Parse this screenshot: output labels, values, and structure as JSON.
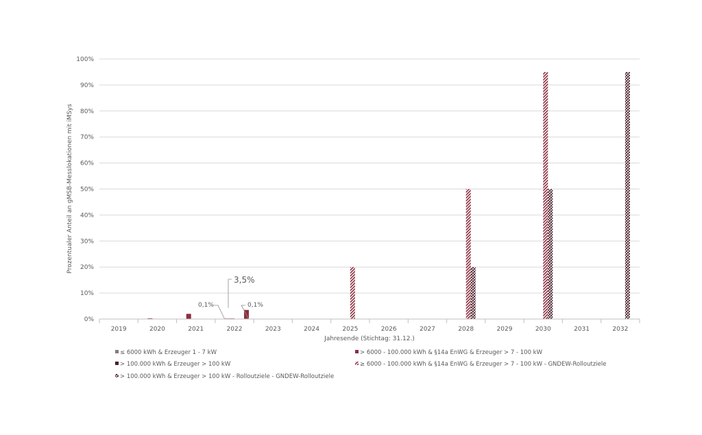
{
  "chart_data": {
    "type": "bar",
    "title": "",
    "xlabel": "Jahresende (Stichtag: 31.12.)",
    "ylabel": "Prozentualer Anteil an gMSB-Messlokationen mit iMSys",
    "ylim": [
      0,
      100
    ],
    "y_ticks": [
      "0%",
      "10%",
      "20%",
      "30%",
      "40%",
      "50%",
      "60%",
      "70%",
      "80%",
      "90%",
      "100%"
    ],
    "grid": true,
    "legend_position": "bottom",
    "categories": [
      "2019",
      "2020",
      "2021",
      "2022",
      "2023",
      "2024",
      "2025",
      "2026",
      "2027",
      "2028",
      "2029",
      "2030",
      "2031",
      "2032"
    ],
    "series": [
      {
        "name": "≤ 6000 kWh & Erzeuger 1 - 7 kW",
        "color": "#7f7f7f",
        "pattern": "solid",
        "values": [
          0,
          0,
          0,
          0,
          0,
          0,
          0,
          0,
          0,
          0,
          0,
          0,
          0,
          0
        ]
      },
      {
        "name": "> 6000 - 100.000 kWh & §14a EnWG & Erzeuger > 7 - 100 kW",
        "color": "#8c2e3e",
        "pattern": "solid",
        "values": [
          0,
          0.3,
          2,
          0.1,
          0,
          0,
          0,
          0,
          0,
          0,
          0,
          0,
          0,
          0
        ]
      },
      {
        "name": "> 100.000 kWh & Erzeuger > 100 kW",
        "color": "#4a1f2a",
        "pattern": "solid",
        "values": [
          0,
          0,
          0,
          0.1,
          0,
          0,
          0,
          0,
          0,
          0,
          0,
          0,
          0,
          0
        ]
      },
      {
        "name": "≥ 6000 - 100.000 kWh & §14a EnWG & Erzeuger > 7 - 100 kW - GNDEW-Rolloutziele",
        "color": "#8c2e3e",
        "pattern": "hatch",
        "values": [
          0,
          0,
          0,
          0,
          0,
          0,
          20,
          0,
          0,
          50,
          0,
          95,
          0,
          0
        ]
      },
      {
        "name": "> 100.000 kWh & Erzeuger > 100 kW - Rolloutziele - GNDEW-Rolloutziele",
        "color": "#4a1f2a",
        "pattern": "cross",
        "values": [
          0,
          0,
          0,
          0,
          0,
          0,
          0,
          0,
          0,
          20,
          0,
          50,
          0,
          95
        ]
      }
    ],
    "extra_bar": {
      "category": "2022",
      "value": 3.5,
      "color": "#8c2e3e"
    },
    "annotations": [
      {
        "text": "0,1%",
        "category": "2022",
        "value": 0.1
      },
      {
        "text": "3,5%",
        "category": "2022",
        "value": 3.5
      },
      {
        "text": "0,1%",
        "category": "2022",
        "value": 0.1
      }
    ]
  }
}
